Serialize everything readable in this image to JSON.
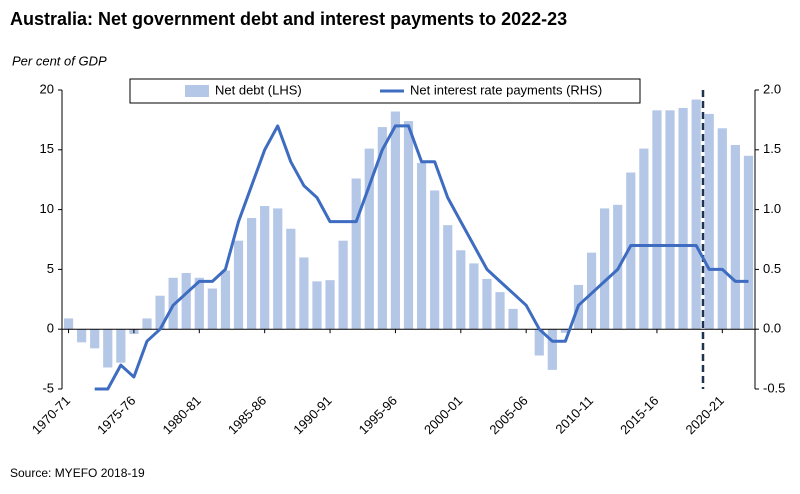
{
  "chart_data": {
    "type": "bar_line",
    "title": "Australia: Net government debt and interest payments to 2022-23",
    "y_label": "Per cent of GDP",
    "source": "Source: MYEFO 2018-19",
    "categories": [
      "1970-71",
      null,
      null,
      null,
      null,
      "1975-76",
      null,
      null,
      null,
      null,
      "1980-81",
      null,
      null,
      null,
      null,
      "1985-86",
      null,
      null,
      null,
      null,
      "1990-91",
      null,
      null,
      null,
      null,
      "1995-96",
      null,
      null,
      null,
      null,
      "2000-01",
      null,
      null,
      null,
      null,
      "2005-06",
      null,
      null,
      null,
      null,
      "2010-11",
      null,
      null,
      null,
      null,
      "2015-16",
      null,
      null,
      null,
      null,
      "2020-21",
      null,
      null
    ],
    "series": [
      {
        "name": "Net debt (LHS)",
        "color": "#b4c7e7",
        "kind": "bar",
        "values": [
          0.9,
          -1.1,
          -1.6,
          -3.2,
          -2.8,
          -0.4,
          0.9,
          2.8,
          4.3,
          4.7,
          4.3,
          3.4,
          4.9,
          7.4,
          9.3,
          10.3,
          10.1,
          8.4,
          6.0,
          4.0,
          4.1,
          7.4,
          12.6,
          15.1,
          16.9,
          18.2,
          17.4,
          13.9,
          11.6,
          8.7,
          6.6,
          5.5,
          4.2,
          3.1,
          1.7,
          0.0,
          -2.2,
          -3.4,
          -0.3,
          3.7,
          6.4,
          10.1,
          10.4,
          13.1,
          15.1,
          18.3,
          18.3,
          18.5,
          19.2,
          18.0,
          16.8,
          15.4,
          14.5
        ]
      },
      {
        "name": "Net interest rate payments (RHS)",
        "color": "#3d6cc0",
        "kind": "line",
        "axis": "y2",
        "values": [
          null,
          null,
          -0.5,
          -0.5,
          -0.3,
          -0.4,
          -0.1,
          0.0,
          0.2,
          0.3,
          0.4,
          0.4,
          0.5,
          0.9,
          1.2,
          1.5,
          1.7,
          1.4,
          1.2,
          1.1,
          0.9,
          0.9,
          0.9,
          1.2,
          1.5,
          1.7,
          1.7,
          1.4,
          1.4,
          1.1,
          0.9,
          0.7,
          0.5,
          0.4,
          0.3,
          0.2,
          0.0,
          -0.1,
          -0.1,
          0.2,
          0.3,
          0.4,
          0.5,
          0.7,
          0.7,
          0.7,
          0.7,
          0.7,
          0.7,
          0.5,
          0.5,
          0.4,
          0.4
        ]
      }
    ],
    "ylim": [
      -5,
      20
    ],
    "yticks": [
      -5,
      0,
      5,
      10,
      15,
      20
    ],
    "y2lim": [
      -0.5,
      2.0
    ],
    "y2ticks": [
      -0.5,
      {
        "value": 0,
        "label": "0.0"
      },
      0.5,
      {
        "value": 1,
        "label": "1.0"
      },
      1.5,
      {
        "value": 2,
        "label": "2.0"
      }
    ],
    "legend": "top"
  }
}
